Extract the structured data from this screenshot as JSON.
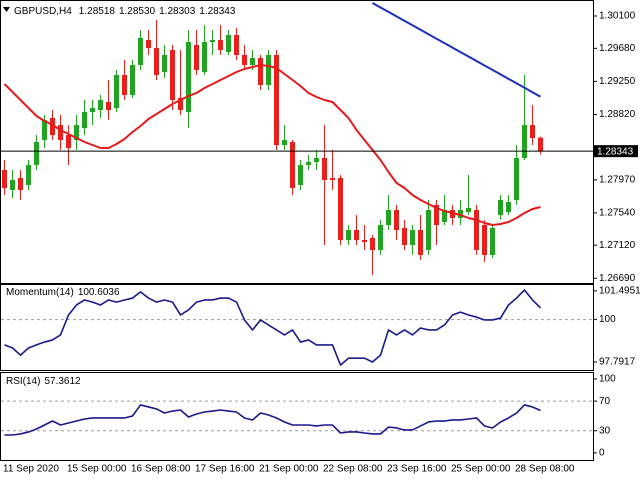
{
  "chart_data": [
    {
      "type": "candlestick",
      "title": "GBPUSD,H4",
      "categories": [
        "11 Sep 2020",
        null,
        null,
        null,
        null,
        null,
        null,
        null,
        "15 Sep 00:00",
        null,
        null,
        null,
        null,
        null,
        null,
        null,
        "16 Sep 08:00",
        null,
        null,
        null,
        null,
        null,
        null,
        null,
        "17 Sep 16:00",
        null,
        null,
        null,
        null,
        null,
        null,
        null,
        "21 Sep 00:00",
        null,
        null,
        null,
        null,
        null,
        null,
        null,
        "22 Sep 08:00",
        null,
        null,
        null,
        null,
        null,
        null,
        null,
        "23 Sep 16:00",
        null,
        null,
        null,
        null,
        null,
        null,
        null,
        "25 Sep 00:00",
        null,
        null,
        null,
        null,
        null,
        null,
        null,
        "28 Sep 08:00",
        null,
        null,
        null
      ],
      "open": [
        1.28098,
        1.27838,
        1.27994,
        1.27903,
        1.28163,
        1.28488,
        1.28774,
        1.28683,
        1.28553,
        1.28488,
        1.28644,
        1.28852,
        1.28878,
        1.28982,
        1.28904,
        1.29333,
        1.29073,
        1.29463,
        1.29788,
        1.29684,
        1.29372,
        1.29658,
        1.29034,
        1.28852,
        1.29723,
        1.29372,
        1.29762,
        1.29788,
        1.29632,
        1.29853,
        1.29593,
        1.29463,
        1.29554,
        1.29203,
        1.29593,
        1.28423,
        1.28462,
        1.27903,
        1.28163,
        1.28202,
        1.28254,
        1.27994,
        1.27994,
        1.27188,
        1.27318,
        1.27188,
        1.27214,
        1.27058,
        1.27383,
        1.27578,
        1.27344,
        1.27123,
        1.27318,
        1.27058,
        1.27643,
        1.27422,
        1.27578,
        1.27474,
        1.27552,
        1.27578,
        1.27383,
        1.26993,
        1.27513,
        1.27552,
        1.27708,
        1.28254,
        1.28683,
        1.28518
      ],
      "high": [
        1.28228,
        1.28098,
        1.28098,
        1.28228,
        1.28553,
        1.28813,
        1.28878,
        1.28813,
        1.28683,
        1.28813,
        1.29008,
        1.29008,
        1.29073,
        1.29268,
        1.29398,
        1.29528,
        1.29528,
        1.29918,
        1.29918,
        1.30048,
        1.29723,
        1.29723,
        1.29658,
        1.29918,
        1.29918,
        1.29983,
        1.29918,
        1.29983,
        1.29918,
        1.29944,
        1.29723,
        1.29658,
        1.29593,
        1.29658,
        1.29658,
        1.28683,
        1.28488,
        1.28228,
        1.28293,
        1.28358,
        1.28683,
        1.28358,
        1.28033,
        1.27383,
        1.27513,
        1.27383,
        1.27253,
        1.27448,
        1.27773,
        1.27643,
        1.27448,
        1.27383,
        1.27513,
        1.27708,
        1.27708,
        1.27773,
        1.27643,
        1.27708,
        1.28033,
        1.27643,
        1.27448,
        1.27383,
        1.27773,
        1.27773,
        1.28423,
        1.29333,
        1.28943,
        {
          "value": 1.2853,
          "label": "1.28530"
        }
      ],
      "low": [
        1.27773,
        1.27734,
        1.27708,
        1.27838,
        1.28098,
        1.28384,
        1.28488,
        1.28358,
        1.28163,
        1.28358,
        1.28553,
        1.28683,
        1.28774,
        1.28748,
        1.28852,
        1.29008,
        1.29034,
        1.29398,
        1.29593,
        1.29268,
        1.29294,
        1.28878,
        1.28813,
        1.28644,
        1.29333,
        1.29333,
        1.29593,
        1.29593,
        1.29593,
        1.29528,
        1.29398,
        1.29398,
        1.29138,
        1.29138,
        1.28358,
        1.28358,
        1.27773,
        1.27838,
        1.28098,
        1.28098,
        1.27123,
        1.27838,
        1.27123,
        1.27123,
        1.27123,
        1.27058,
        1.26733,
        1.26993,
        1.27318,
        1.27188,
        1.27058,
        1.26993,
        1.26928,
        1.26993,
        1.27123,
        1.27383,
        1.27383,
        1.27383,
        1.27513,
        1.26993,
        1.26902,
        1.26954,
        1.27448,
        1.27513,
        1.27643,
        1.28228,
        1.28423,
        1.28303
      ],
      "close": [
        1.27864,
        1.27968,
        1.27838,
        1.28163,
        1.28462,
        1.28748,
        1.28553,
        1.28488,
        1.28384,
        1.28683,
        1.28852,
        1.28904,
        1.29008,
        1.28878,
        1.29333,
        1.29073,
        1.29463,
        1.29814,
        1.29684,
        1.29333,
        1.29593,
        1.29008,
        1.28878,
        1.29762,
        1.29398,
        1.29762,
        1.29788,
        1.29658,
        1.29853,
        1.29593,
        1.29463,
        1.29554,
        1.29203,
        1.29593,
        1.28423,
        1.28488,
        1.27864,
        1.28163,
        1.28202,
        1.28254,
        1.27968,
        1.27968,
        1.27188,
        1.27318,
        1.27188,
        1.27162,
        1.27058,
        1.27383,
        1.27578,
        1.27318,
        1.27123,
        1.27318,
        1.26993,
        1.27578,
        1.27383,
        1.27578,
        1.27474,
        1.27578,
        1.27604,
        1.27058,
        1.26993,
        1.27344,
        1.27708,
        1.27682,
        1.28254,
        1.28683,
        1.28514,
        1.28343
      ],
      "up_color": "#22a322",
      "down_color": "#e8211d",
      "series": [
        {
          "color": "#e31a1c",
          "values": [
            1.29216,
            1.29112,
            1.29008,
            1.28904,
            1.288,
            1.28735,
            1.28683,
            1.28618,
            1.28566,
            1.28514,
            1.28462,
            1.28423,
            1.28384,
            1.28384,
            1.28436,
            1.28501,
            1.28592,
            1.2867,
            1.28761,
            1.28826,
            1.28891,
            1.28956,
            1.29008,
            1.2906,
            1.29099,
            1.29164,
            1.29216,
            1.29268,
            1.2932,
            1.29372,
            1.29411,
            1.29437,
            1.29463,
            1.2945,
            1.29424,
            1.29346,
            1.29268,
            1.2919,
            1.29099,
            1.29047,
            1.29008,
            1.28982,
            1.28878,
            1.28774,
            1.28618,
            1.28488,
            1.28358,
            1.28228,
            1.28072,
            1.27929,
            1.27864,
            1.27773,
            1.27708,
            1.27656,
            1.27604,
            1.27565,
            1.27539,
            1.27513,
            1.27474,
            1.27448,
            1.27409,
            1.27383,
            1.27396,
            1.27422,
            1.27474,
            1.27539,
            1.27591,
            1.27617
          ]
        },
        {
          "color": "#1c2fb8",
          "values": [
            null,
            null,
            null,
            null,
            null,
            null,
            null,
            null,
            null,
            null,
            null,
            null,
            null,
            null,
            null,
            null,
            null,
            null,
            null,
            null,
            null,
            null,
            null,
            null,
            null,
            null,
            null,
            null,
            null,
            null,
            null,
            null,
            null,
            null,
            null,
            null,
            null,
            null,
            null,
            null,
            null,
            null,
            null,
            null,
            null,
            null,
            1.30269,
            1.30211,
            1.30153,
            1.30095,
            1.30037,
            1.29979,
            1.29921,
            1.29863,
            1.29805,
            1.29747,
            1.29689,
            1.29631,
            1.29573,
            1.29515,
            1.29457,
            1.29399,
            1.29341,
            1.29283,
            1.29225,
            1.29167,
            1.29109,
            1.29051
          ]
        }
      ],
      "ylim": [
        1.26629,
        1.30295
      ],
      "yticks": [
        {
          "value": 1.301,
          "label": "1.30100"
        },
        {
          "value": 1.2968,
          "label": "1.29680"
        },
        {
          "value": 1.2925,
          "label": "1.29250"
        },
        {
          "value": 1.2882,
          "label": "1.28820"
        },
        {
          "value": 1.2797,
          "label": "1.27970"
        },
        {
          "value": 1.2754,
          "label": "1.27540"
        },
        {
          "value": 1.2712,
          "label": "1.27120"
        },
        {
          "value": 1.2669,
          "label": "1.26690"
        }
      ],
      "current_price_line": true
    },
    {
      "type": "line",
      "title": "Momentum(14)",
      "color": "#1a1a8c",
      "values": [
        98.68,
        98.52,
        98.15,
        98.52,
        98.68,
        98.83,
        98.94,
        99.2,
        100.24,
        100.76,
        101.02,
        100.91,
        100.76,
        101.02,
        100.91,
        101.02,
        101.12,
        101.44,
        101.12,
        100.91,
        101.02,
        100.91,
        100.24,
        100.5,
        100.91,
        101.02,
        101.02,
        101.12,
        101.12,
        100.91,
        99.98,
        99.46,
        99.98,
        99.72,
        99.46,
        99.2,
        99.46,
        98.83,
        98.94,
        98.68,
        98.68,
        98.68,
        97.63,
        97.99,
        97.99,
        97.99,
        97.79,
        98.15,
        99.46,
        99.2,
        99.46,
        99.2,
        99.56,
        99.46,
        99.46,
        99.72,
        100.24,
        100.39,
        100.24,
        100.13,
        99.98,
        99.98,
        100.08,
        100.76,
        101.12,
        101.54,
        101.02,
        100.6036
      ],
      "ylim": [
        97.375,
        101.8
      ],
      "yticks": [
        101.4951,
        100,
        97.7917
      ],
      "levels": [
        100
      ]
    },
    {
      "type": "line",
      "title": "RSI(14)",
      "color": "#1a1a8c",
      "values": [
        24.2,
        24.2,
        25.6,
        28.3,
        32.3,
        37.7,
        43.1,
        37.7,
        40.4,
        43.1,
        45.8,
        47.2,
        47.2,
        47.2,
        47.2,
        47.2,
        49.9,
        64.8,
        62.1,
        59.4,
        53.9,
        56.6,
        58,
        48.5,
        52.6,
        55.3,
        56.6,
        58,
        56.6,
        55.3,
        47.2,
        44.5,
        53.9,
        51.2,
        47.2,
        41.8,
        37.7,
        37.7,
        37.7,
        36.4,
        37.7,
        37.7,
        26.9,
        28.3,
        28.3,
        26.9,
        25.6,
        25.6,
        35,
        33.7,
        31,
        31,
        36.4,
        41.8,
        43.1,
        43.1,
        44.5,
        44.5,
        45.8,
        47.2,
        36.4,
        33.7,
        41.8,
        47.2,
        53.9,
        64.8,
        62.1,
        57.3612
      ],
      "ylim": [
        -9.6,
        108
      ],
      "yticks": [
        100,
        70,
        30,
        0
      ],
      "levels": [
        70,
        30
      ]
    }
  ]
}
